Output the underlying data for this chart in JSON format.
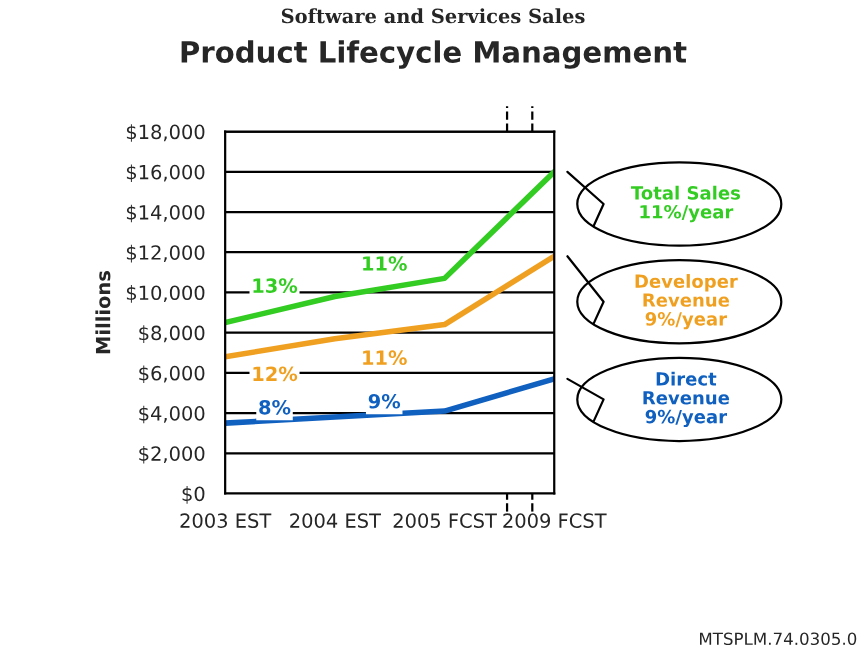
{
  "chart_data": {
    "type": "line",
    "subtitle": "Software and Services Sales",
    "title": "Product Lifecycle Management",
    "ylabel": "Millions",
    "categories": [
      "2003 EST",
      "2004 EST",
      "2005 FCST",
      "2009 FCST"
    ],
    "series": [
      {
        "name": "Total Sales",
        "color": "#33cc22",
        "values": [
          8500,
          9800,
          10700,
          16000
        ]
      },
      {
        "name": "Developer Revenue",
        "color": "#f0a020",
        "values": [
          6800,
          7700,
          8400,
          11800
        ]
      },
      {
        "name": "Direct Revenue",
        "color": "#1060c0",
        "values": [
          3500,
          3800,
          4100,
          5700
        ]
      }
    ],
    "ylim": [
      0,
      18000
    ],
    "yticks": [
      {
        "value": 0,
        "label": "$0"
      },
      {
        "value": 2000,
        "label": "$2,000"
      },
      {
        "value": 4000,
        "label": "$4,000"
      },
      {
        "value": 6000,
        "label": "$6,000"
      },
      {
        "value": 8000,
        "label": "$8,000"
      },
      {
        "value": 10000,
        "label": "$10,000"
      },
      {
        "value": 12000,
        "label": "$12,000"
      },
      {
        "value": 14000,
        "label": "$14,000"
      },
      {
        "value": 16000,
        "label": "$16,000"
      },
      {
        "value": 18000,
        "label": "$18,000"
      }
    ],
    "grid": "y",
    "legend": false,
    "marker": "none",
    "line_style": "solid",
    "annotations": [
      "13%",
      "11%",
      "12%",
      "11%",
      "8%",
      "9%",
      "11%/year",
      "9%/year",
      "9%/year",
      "MTSPLM.74.0305.0"
    ]
  }
}
